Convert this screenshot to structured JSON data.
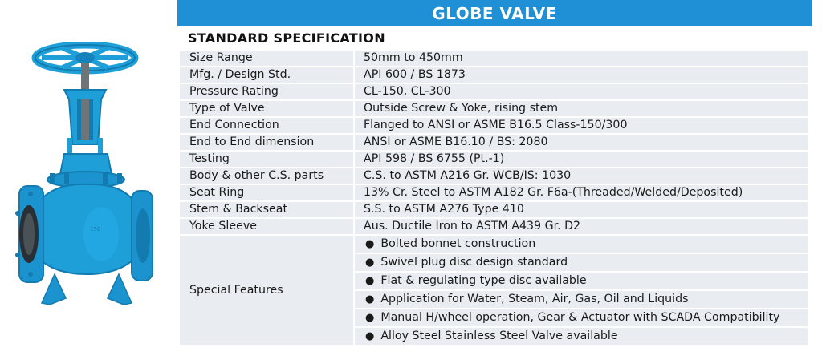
{
  "header": {
    "title": "GLOBE VALVE",
    "subtitle": "STANDARD SPECIFICATION"
  },
  "colors": {
    "title_bar": "#1f8fd6",
    "row_bg": "#e9edf2",
    "valve_body": "#1e9fd8"
  },
  "image": {
    "icon": "globe-valve-illustration"
  },
  "specs": [
    {
      "label": "Size Range",
      "value": "50mm to 450mm"
    },
    {
      "label": "Mfg. / Design Std.",
      "value": "API 600 / BS 1873"
    },
    {
      "label": "Pressure Rating",
      "value": "CL-150, CL-300"
    },
    {
      "label": "Type of Valve",
      "value": "Outside Screw & Yoke, rising stem"
    },
    {
      "label": "End Connection",
      "value": "Flanged to ANSI or ASME B16.5 Class-150/300"
    },
    {
      "label": "End to End dimension",
      "value": "ANSI or ASME B16.10 / BS: 2080"
    },
    {
      "label": "Testing",
      "value": "API 598 / BS 6755 (Pt.-1)"
    },
    {
      "label": "Body & other C.S. parts",
      "value": "C.S. to ASTM A216 Gr. WCB/IS: 1030"
    },
    {
      "label": "Seat Ring",
      "value": "13% Cr. Steel to ASTM A182 Gr. F6a-(Threaded/Welded/Deposited)"
    },
    {
      "label": "Stem & Backseat",
      "value": "S.S. to ASTM A276 Type 410"
    },
    {
      "label": "Yoke Sleeve",
      "value": "Aus. Ductile Iron to ASTM A439 Gr. D2"
    }
  ],
  "features": {
    "label": "Special Features",
    "bullet": "●",
    "items": [
      "Bolted bonnet construction",
      "Swivel plug disc design standard",
      "Flat & regulating type disc available",
      "Application for Water, Steam, Air, Gas, Oil and Liquids",
      "Manual H/wheel operation, Gear & Actuator with SCADA Compatibility",
      "Alloy Steel Stainless Steel Valve available"
    ]
  }
}
